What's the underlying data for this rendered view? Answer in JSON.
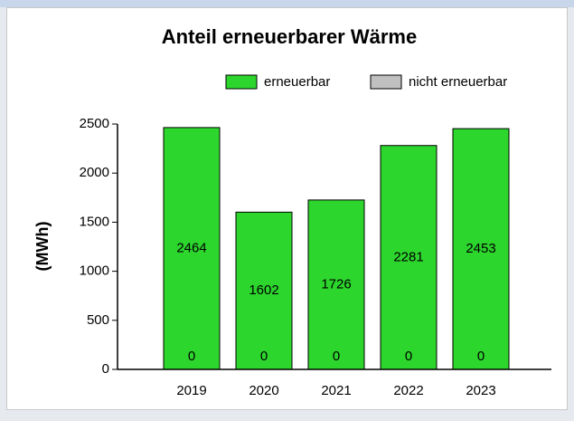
{
  "chart_data": {
    "type": "stacked_bar",
    "title": "Anteil erneuerbarer Wärme",
    "y_label": "(MWh)",
    "categories": [
      "2019",
      "2020",
      "2021",
      "2022",
      "2023"
    ],
    "series": [
      {
        "name": "erneuerbar",
        "color": "#2dd62d",
        "values": [
          2464,
          1602,
          1726,
          2281,
          2453
        ]
      },
      {
        "name": "nicht erneuerbar",
        "color": "#c0c0c0",
        "values": [
          0,
          0,
          0,
          0,
          0
        ]
      }
    ],
    "ylim": [
      0,
      2500
    ],
    "yticks": [
      0,
      500,
      1000,
      1500,
      2000,
      2500
    ],
    "legend": "top-right"
  }
}
